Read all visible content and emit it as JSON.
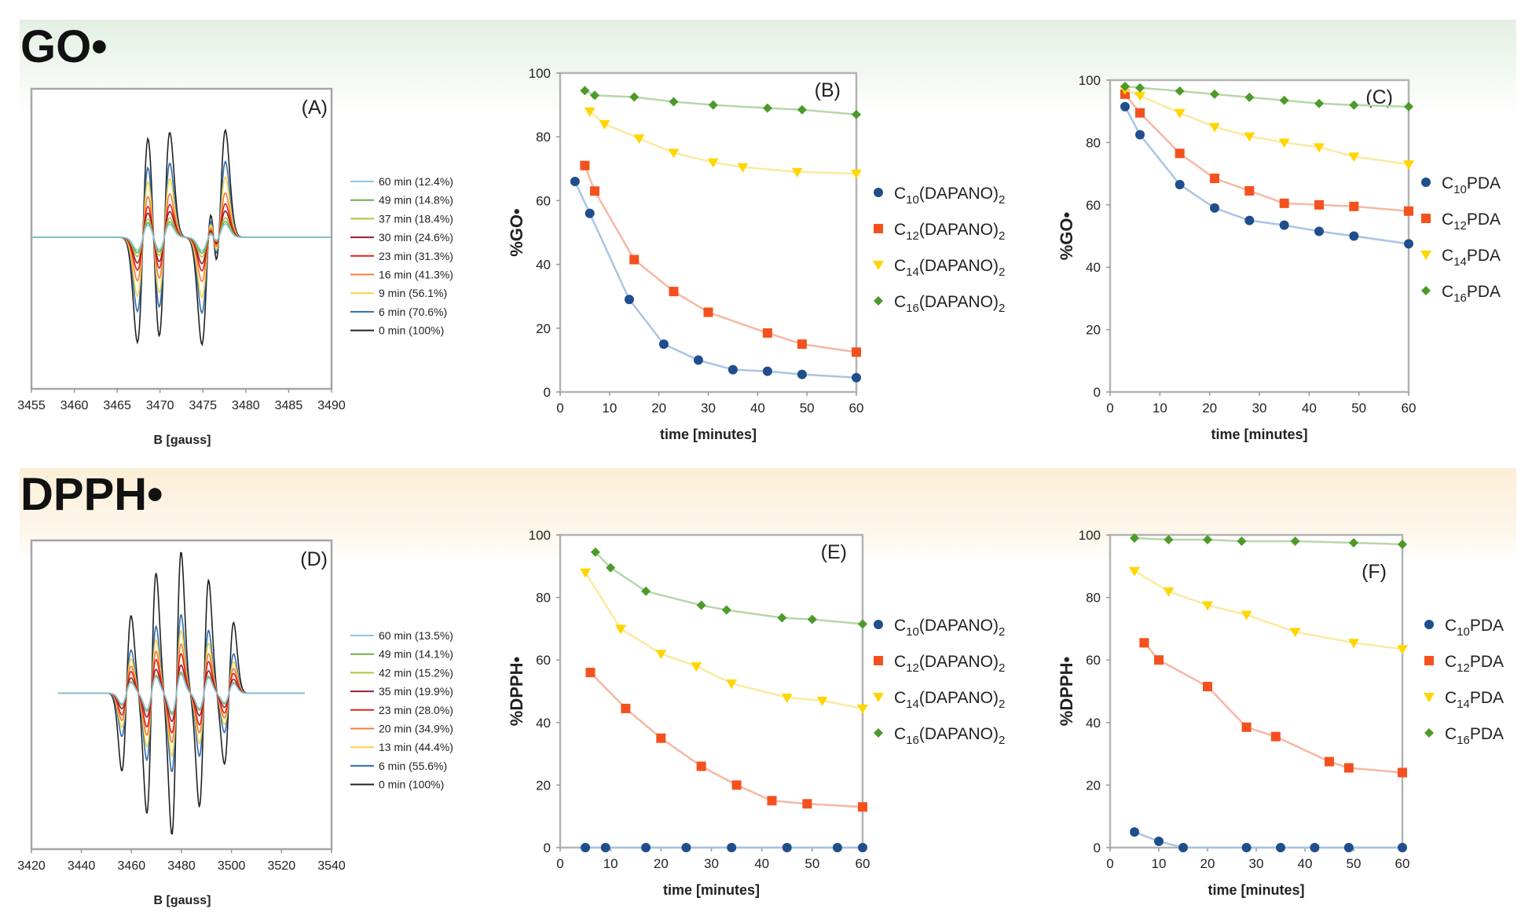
{
  "sections": [
    {
      "title": "GO•"
    },
    {
      "title": "DPPH•"
    }
  ],
  "chart_data": [
    {
      "id": "A",
      "type": "line",
      "panel_label": "(A)",
      "xlabel": "B [gauss]",
      "ylabel": "",
      "xlim": [
        3455,
        3490
      ],
      "xticks": [
        3455,
        3460,
        3465,
        3470,
        3475,
        3480,
        3485,
        3490
      ],
      "spectrum": "go",
      "lines": [
        2.2,
        3.9,
        6.2,
        3.6,
        5.1,
        3.4
      ],
      "legend": [
        {
          "label": "60 min (12.4%)",
          "color": "#86c5e8",
          "amplitude": 0.124
        },
        {
          "label": "49 min (14.8%)",
          "color": "#70ad47",
          "amplitude": 0.148
        },
        {
          "label": "37 min (18.4%)",
          "color": "#a9c83a",
          "amplitude": 0.184
        },
        {
          "label": "30 min (24.6%)",
          "color": "#9e1b32",
          "amplitude": 0.246
        },
        {
          "label": "23 min (31.3%)",
          "color": "#e2231a",
          "amplitude": 0.313
        },
        {
          "label": "16 min (41.3%)",
          "color": "#f47c3c",
          "amplitude": 0.413
        },
        {
          "label": "9 min (56.1%)",
          "color": "#ffd23f",
          "amplitude": 0.561
        },
        {
          "label": "6 min (70.6%)",
          "color": "#2e6db4",
          "amplitude": 0.706
        },
        {
          "label": "0 min (100%)",
          "color": "#222222",
          "amplitude": 1.0
        }
      ]
    },
    {
      "id": "B",
      "type": "line",
      "panel_label": "(B)",
      "xlabel": "time [minutes]",
      "ylabel": "%GO•",
      "xlim": [
        0,
        60
      ],
      "ylim": [
        0,
        100
      ],
      "xticks": [
        0,
        10,
        20,
        30,
        40,
        50,
        60
      ],
      "yticks": [
        0,
        20,
        40,
        60,
        80,
        100
      ],
      "series": [
        {
          "name_base": "C",
          "name_sub": "10",
          "name_tail": "(DAPANO)",
          "name_sub2": "2",
          "marker": "circle",
          "color": "#1f4e8c",
          "line": "#a9c4e6",
          "x": [
            3,
            6,
            14,
            21,
            28,
            35,
            42,
            49,
            60
          ],
          "y": [
            66,
            56,
            29,
            15,
            10,
            7,
            6.5,
            5.5,
            4.5
          ]
        },
        {
          "name_base": "C",
          "name_sub": "12",
          "name_tail": "(DAPANO)",
          "name_sub2": "2",
          "marker": "square",
          "color": "#f4511e",
          "line": "#f7b7a3",
          "x": [
            5,
            7,
            15,
            23,
            30,
            42,
            49,
            60
          ],
          "y": [
            71,
            63,
            41.5,
            31.5,
            25,
            18.5,
            15,
            12.5
          ]
        },
        {
          "name_base": "C",
          "name_sub": "14",
          "name_tail": "(DAPANO)",
          "name_sub2": "2",
          "marker": "triangle",
          "color": "#ffd600",
          "line": "#fbe9a0",
          "x": [
            6,
            9,
            16,
            23,
            31,
            37,
            48,
            60
          ],
          "y": [
            88,
            84,
            79.5,
            75,
            72,
            70.5,
            69,
            68.5
          ]
        },
        {
          "name_base": "C",
          "name_sub": "16",
          "name_tail": "(DAPANO)",
          "name_sub2": "2",
          "marker": "diamond",
          "color": "#4c9a2a",
          "line": "#b6d7a8",
          "x": [
            5,
            7,
            15,
            23,
            31,
            42,
            49,
            60
          ],
          "y": [
            94.5,
            93,
            92.5,
            91,
            90,
            89,
            88.5,
            87
          ]
        }
      ]
    },
    {
      "id": "C",
      "type": "line",
      "panel_label": "(C)",
      "xlabel": "time [minutes]",
      "ylabel": "%GO•",
      "xlim": [
        0,
        60
      ],
      "ylim": [
        0,
        100
      ],
      "xticks": [
        0,
        10,
        20,
        30,
        40,
        50,
        60
      ],
      "yticks": [
        0,
        20,
        40,
        60,
        80,
        100
      ],
      "series": [
        {
          "name_base": "C",
          "name_sub": "10",
          "name_tail": "PDA",
          "name_sub2": "",
          "marker": "circle",
          "color": "#1f4e8c",
          "line": "#a9c4e6",
          "x": [
            3,
            6,
            14,
            21,
            28,
            35,
            42,
            49,
            60
          ],
          "y": [
            91.5,
            82.5,
            66.5,
            59,
            55,
            53.5,
            51.5,
            50,
            47.5
          ]
        },
        {
          "name_base": "C",
          "name_sub": "12",
          "name_tail": "PDA",
          "name_sub2": "",
          "marker": "square",
          "color": "#f4511e",
          "line": "#f7b7a3",
          "x": [
            3,
            6,
            14,
            21,
            28,
            35,
            42,
            49,
            60
          ],
          "y": [
            95.5,
            89.5,
            76.5,
            68.5,
            64.5,
            60.5,
            60,
            59.5,
            58
          ]
        },
        {
          "name_base": "C",
          "name_sub": "14",
          "name_tail": "PDA",
          "name_sub2": "",
          "marker": "triangle",
          "color": "#ffd600",
          "line": "#fbe9a0",
          "x": [
            3,
            6,
            14,
            21,
            28,
            35,
            42,
            49,
            60
          ],
          "y": [
            97,
            95,
            89.5,
            85,
            82,
            80,
            78.5,
            75.5,
            73
          ]
        },
        {
          "name_base": "C",
          "name_sub": "16",
          "name_tail": "PDA",
          "name_sub2": "",
          "marker": "diamond",
          "color": "#4c9a2a",
          "line": "#b6d7a8",
          "x": [
            3,
            6,
            14,
            21,
            28,
            35,
            42,
            49,
            60
          ],
          "y": [
            98,
            97.5,
            96.5,
            95.5,
            94.5,
            93.5,
            92.5,
            92,
            91.5
          ]
        }
      ]
    },
    {
      "id": "D",
      "type": "line",
      "panel_label": "(D)",
      "xlabel": "B [gauss]",
      "ylabel": "",
      "xlim": [
        3420,
        3540
      ],
      "xticks": [
        3420,
        3440,
        3460,
        3480,
        3500,
        3520,
        3540
      ],
      "spectrum": "dpph",
      "lines": [
        3458,
        3468,
        3478,
        3489,
        3499
      ],
      "legend": [
        {
          "label": "60 min (13.5%)",
          "color": "#86c5e8",
          "amplitude": 0.135
        },
        {
          "label": "49 min (14.1%)",
          "color": "#70ad47",
          "amplitude": 0.141
        },
        {
          "label": "42 min (15.2%)",
          "color": "#a9c83a",
          "amplitude": 0.152
        },
        {
          "label": "35 min (19.9%)",
          "color": "#9e1b32",
          "amplitude": 0.199
        },
        {
          "label": "23 min (28.0%)",
          "color": "#e2231a",
          "amplitude": 0.28
        },
        {
          "label": "20 min (34.9%)",
          "color": "#f47c3c",
          "amplitude": 0.349
        },
        {
          "label": "13 min (44.4%)",
          "color": "#ffd23f",
          "amplitude": 0.444
        },
        {
          "label": "6 min (55.6%)",
          "color": "#2e6db4",
          "amplitude": 0.556
        },
        {
          "label": "0 min (100%)",
          "color": "#222222",
          "amplitude": 1.0
        }
      ]
    },
    {
      "id": "E",
      "type": "line",
      "panel_label": "(E)",
      "xlabel": "time [minutes]",
      "ylabel": "%DPPH•",
      "xlim": [
        0,
        60
      ],
      "ylim": [
        0,
        100
      ],
      "xticks": [
        0,
        10,
        20,
        30,
        40,
        50,
        60
      ],
      "yticks": [
        0,
        20,
        40,
        60,
        80,
        100
      ],
      "series": [
        {
          "name_base": "C",
          "name_sub": "10",
          "name_tail": "(DAPANO)",
          "name_sub2": "2",
          "marker": "circle",
          "color": "#1f4e8c",
          "line": "#a9c4e6",
          "x": [
            5,
            9,
            17,
            25,
            34,
            45,
            55,
            60
          ],
          "y": [
            0,
            0,
            0,
            0,
            0,
            0,
            0,
            0
          ]
        },
        {
          "name_base": "C",
          "name_sub": "12",
          "name_tail": "(DAPANO)",
          "name_sub2": "2",
          "marker": "square",
          "color": "#f4511e",
          "line": "#f7b7a3",
          "x": [
            6,
            13,
            20,
            28,
            35,
            42,
            49,
            60
          ],
          "y": [
            56,
            44.5,
            35,
            26,
            20,
            15,
            14,
            13
          ]
        },
        {
          "name_base": "C",
          "name_sub": "14",
          "name_tail": "(DAPANO)",
          "name_sub2": "2",
          "marker": "triangle",
          "color": "#ffd600",
          "line": "#fbe9a0",
          "x": [
            5,
            12,
            20,
            27,
            34,
            45,
            52,
            60
          ],
          "y": [
            88,
            70,
            62,
            58,
            52.5,
            48,
            47,
            44.5
          ]
        },
        {
          "name_base": "C",
          "name_sub": "16",
          "name_tail": "(DAPANO)",
          "name_sub2": "2",
          "marker": "diamond",
          "color": "#4c9a2a",
          "line": "#b6d7a8",
          "x": [
            7,
            10,
            17,
            28,
            33,
            44,
            50,
            60
          ],
          "y": [
            94.5,
            89.5,
            82,
            77.5,
            76,
            73.5,
            73,
            71.5
          ]
        }
      ]
    },
    {
      "id": "F",
      "type": "line",
      "panel_label": "(F)",
      "xlabel": "time [minutes]",
      "ylabel": "%DPPH•",
      "xlim": [
        0,
        60
      ],
      "ylim": [
        0,
        100
      ],
      "xticks": [
        0,
        10,
        20,
        30,
        40,
        50,
        60
      ],
      "yticks": [
        0,
        20,
        40,
        60,
        80,
        100
      ],
      "series": [
        {
          "name_base": "C",
          "name_sub": "10",
          "name_tail": "PDA",
          "name_sub2": "",
          "marker": "circle",
          "color": "#1f4e8c",
          "line": "#a9c4e6",
          "x": [
            5,
            10,
            15,
            28,
            35,
            42,
            49,
            60
          ],
          "y": [
            5,
            2,
            0,
            0,
            0,
            0,
            0,
            0
          ]
        },
        {
          "name_base": "C",
          "name_sub": "12",
          "name_tail": "PDA",
          "name_sub2": "",
          "marker": "square",
          "color": "#f4511e",
          "line": "#f7b7a3",
          "x": [
            7,
            10,
            20,
            28,
            34,
            45,
            49,
            60
          ],
          "y": [
            65.5,
            60,
            51.5,
            38.5,
            35.5,
            27.5,
            25.5,
            24
          ]
        },
        {
          "name_base": "C",
          "name_sub": "14",
          "name_tail": "PDA",
          "name_sub2": "",
          "marker": "triangle",
          "color": "#ffd600",
          "line": "#fbe9a0",
          "x": [
            5,
            12,
            20,
            28,
            38,
            50,
            60
          ],
          "y": [
            88.5,
            82,
            77.5,
            74.5,
            69,
            65.5,
            63.5
          ]
        },
        {
          "name_base": "C",
          "name_sub": "16",
          "name_tail": "PDA",
          "name_sub2": "",
          "marker": "diamond",
          "color": "#4c9a2a",
          "line": "#b6d7a8",
          "x": [
            5,
            12,
            20,
            27,
            38,
            50,
            60
          ],
          "y": [
            99,
            98.5,
            98.5,
            98,
            98,
            97.5,
            97
          ]
        }
      ]
    }
  ]
}
